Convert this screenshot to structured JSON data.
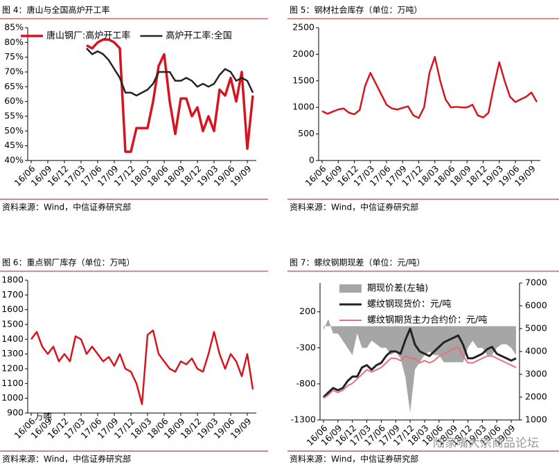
{
  "chart_data": [
    {
      "type": "line",
      "title": "图 4：唐山与全国高炉开工率",
      "source": "资料来源：Wind，中信证券研究部",
      "legend": "top",
      "categories": [
        "16/06",
        null,
        null,
        "16/09",
        null,
        null,
        "16/12",
        null,
        null,
        "17/03",
        null,
        null,
        "17/06",
        null,
        null,
        "17/09",
        null,
        null,
        "17/12",
        null,
        null,
        "18/03",
        null,
        null,
        "18/06",
        null,
        null,
        "18/09",
        null,
        null,
        "18/12",
        null,
        null,
        "19/03",
        null,
        null,
        "19/06",
        null,
        null,
        "19/09",
        null
      ],
      "series": [
        {
          "name": "唐山钢厂:高炉开工率",
          "color": "#d7141e",
          "width": 3.5,
          "values": [
            null,
            null,
            null,
            null,
            null,
            null,
            null,
            null,
            null,
            null,
            79,
            78,
            80,
            81,
            81,
            80,
            78,
            43,
            43,
            51,
            51,
            51,
            60,
            72,
            76,
            60,
            49,
            61,
            61,
            55,
            58,
            50,
            55,
            50,
            64,
            62,
            68,
            60,
            70,
            44,
            62
          ]
        },
        {
          "name": "高炉开工率:全国",
          "color": "#222222",
          "width": 2.5,
          "values": [
            null,
            null,
            null,
            null,
            null,
            null,
            null,
            null,
            null,
            null,
            78,
            76,
            77,
            76,
            74,
            71,
            68,
            63,
            63,
            62,
            63,
            64,
            66,
            70,
            70,
            70,
            67,
            67,
            68,
            67,
            65,
            66,
            65,
            66,
            69,
            71,
            70,
            67,
            68,
            67,
            63
          ]
        }
      ],
      "ylim": [
        40,
        85
      ],
      "yticks": [
        {
          "value": 40,
          "label": "40%"
        },
        {
          "value": 45,
          "label": "45%"
        },
        {
          "value": 50,
          "label": "50%"
        },
        {
          "value": 55,
          "label": "55%"
        },
        {
          "value": 60,
          "label": "60%"
        },
        {
          "value": 65,
          "label": "65%"
        },
        {
          "value": 70,
          "label": "70%"
        },
        {
          "value": 75,
          "label": "75%"
        },
        {
          "value": 80,
          "label": "80%"
        },
        {
          "value": 85,
          "label": "85%"
        }
      ]
    },
    {
      "type": "line",
      "title": "图 5：钢材社会库存（单位：万吨）",
      "source": "资料来源：Wind，中信证券研究部",
      "categories": [
        "16/06",
        null,
        null,
        "16/09",
        null,
        null,
        "16/12",
        null,
        null,
        "17/03",
        null,
        null,
        "17/06",
        null,
        null,
        "17/09",
        null,
        null,
        "17/12",
        null,
        null,
        "18/03",
        null,
        null,
        "18/06",
        null,
        null,
        "18/09",
        null,
        null,
        "18/12",
        null,
        null,
        "19/03",
        null,
        null,
        "19/06",
        null,
        null,
        "19/09",
        null
      ],
      "series": [
        {
          "color": "#d7141e",
          "width": 2.5,
          "values": [
            930,
            880,
            920,
            960,
            980,
            900,
            870,
            950,
            1400,
            1650,
            1450,
            1250,
            1050,
            980,
            960,
            990,
            1020,
            850,
            800,
            1000,
            1650,
            1950,
            1500,
            1150,
            1000,
            1010,
            1000,
            1000,
            1050,
            850,
            810,
            900,
            1400,
            1850,
            1500,
            1200,
            1100,
            1150,
            1200,
            1280,
            1100
          ]
        }
      ],
      "ylim": [
        0,
        2500
      ],
      "yticks": [
        0,
        500,
        1000,
        1500,
        2000,
        2500
      ]
    },
    {
      "type": "line",
      "title": "图 6：重点钢厂库存（单位：万吨）",
      "source": "资料来源：Wind，中信证券研究部",
      "annotation": "万吨",
      "categories": [
        "16/06",
        null,
        null,
        "16/09",
        null,
        null,
        "16/12",
        null,
        null,
        "17/03",
        null,
        null,
        "17/06",
        null,
        null,
        "17/09",
        null,
        null,
        "17/12",
        null,
        null,
        "18/03",
        null,
        null,
        "18/06",
        null,
        null,
        "18/09",
        null,
        null,
        "18/12",
        null,
        null,
        "19/03",
        null,
        null,
        "19/06",
        null,
        null,
        "19/09",
        null
      ],
      "series": [
        {
          "color": "#d7141e",
          "width": 2.5,
          "values": [
            1400,
            1450,
            1350,
            1300,
            1350,
            1250,
            1300,
            1250,
            1420,
            1400,
            1300,
            1350,
            1300,
            1250,
            1280,
            1220,
            1300,
            1200,
            1180,
            1100,
            960,
            1430,
            1460,
            1300,
            1250,
            1200,
            1180,
            1250,
            1230,
            1270,
            1200,
            1180,
            1300,
            1450,
            1300,
            1200,
            1300,
            1250,
            1150,
            1300,
            1060
          ]
        }
      ],
      "ylim": [
        900,
        1800
      ],
      "yticks": [
        900,
        1000,
        1100,
        1200,
        1300,
        1400,
        1500,
        1600,
        1700,
        1800
      ]
    },
    {
      "type": "combo",
      "title": "图 7：螺纹钢期现差（单位：元/吨）",
      "source": "资料来源：Wind，中信证券研究部",
      "annotation": "陆家嘴大宗商品论坛",
      "legend": "top-left",
      "categories": [
        "16/06",
        null,
        null,
        "16/09",
        null,
        null,
        "16/12",
        null,
        null,
        "17/03",
        null,
        null,
        "17/06",
        null,
        null,
        "17/09",
        null,
        null,
        "17/12",
        null,
        null,
        "18/03",
        null,
        null,
        "18/06",
        null,
        null,
        "18/09",
        null,
        null,
        "18/12",
        null,
        null,
        "19/03",
        null,
        null,
        "19/06",
        null,
        null,
        "19/09",
        null
      ],
      "series": [
        {
          "name": "期现价差(左轴)",
          "type": "area",
          "color": "#a6a6a6",
          "values": [
            -50,
            100,
            -100,
            -100,
            -200,
            -300,
            -400,
            -100,
            -300,
            -300,
            -200,
            -250,
            -300,
            -300,
            -400,
            -350,
            -450,
            -700,
            -1200,
            -600,
            -500,
            -400,
            -350,
            -400,
            -400,
            -500,
            -500,
            -500,
            -500,
            -500,
            -300,
            -200,
            -300,
            -300,
            -400,
            -400,
            -300,
            -250,
            -250,
            -300,
            -400
          ]
        },
        {
          "name": "螺纹钢现货价：元/吨",
          "type": "line",
          "axis": "y2",
          "color": "#222222",
          "width": 3,
          "values": [
            2000,
            2200,
            2400,
            2300,
            2400,
            2700,
            2900,
            2900,
            3300,
            3400,
            3200,
            3400,
            3500,
            3800,
            4000,
            4000,
            3900,
            4500,
            5000,
            4300,
            4000,
            3900,
            3800,
            4000,
            4200,
            4400,
            4500,
            4600,
            4700,
            4300,
            3700,
            3700,
            3800,
            3900,
            4100,
            4200,
            3900,
            3800,
            3700,
            3600,
            3700
          ]
        },
        {
          "name": "螺纹钢期货主力合约价：元/吨",
          "type": "line",
          "axis": "y2",
          "color": "#e8707e",
          "width": 2,
          "values": [
            1950,
            2100,
            2300,
            2200,
            2300,
            2500,
            2600,
            2800,
            3000,
            3200,
            3100,
            3200,
            3300,
            3500,
            3700,
            3700,
            3600,
            3800,
            3700,
            3700,
            3500,
            3600,
            3500,
            3600,
            3800,
            3900,
            4000,
            4100,
            4200,
            3800,
            3500,
            3500,
            3600,
            3700,
            3800,
            3800,
            3700,
            3600,
            3500,
            3400,
            3300
          ]
        }
      ],
      "ylim": [
        -1300,
        600
      ],
      "yticks": [
        -1300,
        -800,
        -300,
        200
      ],
      "y2lim": [
        1000,
        7000
      ],
      "y2ticks": [
        1000,
        2000,
        3000,
        4000,
        5000,
        6000,
        7000
      ]
    }
  ]
}
